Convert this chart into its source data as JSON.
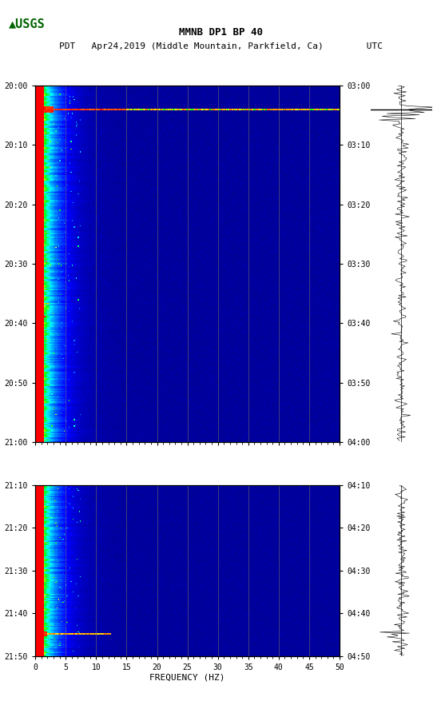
{
  "title_line1": "MMNB DP1 BP 40",
  "title_line2": "PDT   Apr24,2019 (Middle Mountain, Parkfield, Ca)        UTC",
  "xlabel": "FREQUENCY (HZ)",
  "freq_min": 0,
  "freq_max": 50,
  "freq_ticks": [
    0,
    5,
    10,
    15,
    20,
    25,
    30,
    35,
    40,
    45,
    50
  ],
  "freq_grid_lines": [
    5,
    10,
    15,
    20,
    25,
    30,
    35,
    40,
    45
  ],
  "time_labels_left_seg1": [
    "20:00",
    "20:10",
    "20:20",
    "20:30",
    "20:40",
    "20:50",
    "21:00"
  ],
  "time_labels_right_seg1": [
    "03:00",
    "03:10",
    "03:20",
    "03:30",
    "03:40",
    "03:50",
    "04:00"
  ],
  "time_labels_left_seg2": [
    "21:10",
    "21:20",
    "21:30",
    "21:40",
    "21:50"
  ],
  "time_labels_right_seg2": [
    "04:10",
    "04:20",
    "04:30",
    "04:40",
    "04:50"
  ],
  "gap_label_left": "21:10",
  "gap_label_right": "04:10",
  "background_color": "#ffffff",
  "spectrogram_bg": "#00008B",
  "gap_color": "#ffffff",
  "logo_color": "#006400"
}
